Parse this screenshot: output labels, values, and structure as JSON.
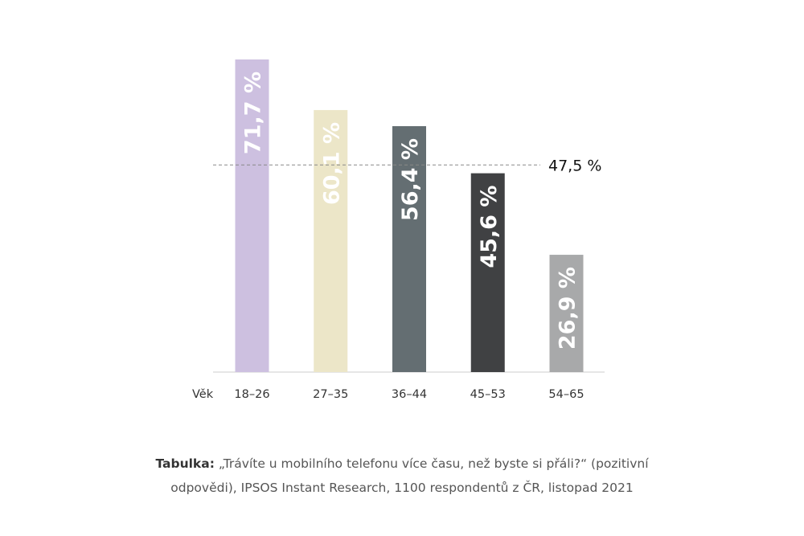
{
  "chart_data": {
    "type": "bar",
    "xlabel": "Věk",
    "categories": [
      "18–26",
      "27–35",
      "36–44",
      "45–53",
      "54–65"
    ],
    "values": [
      71.7,
      60.1,
      56.4,
      45.6,
      26.9
    ],
    "value_labels": [
      "71,7 %",
      "60,1 %",
      "56,4 %",
      "45,6 %",
      "26,9 %"
    ],
    "bar_colors": [
      "#cdc0e0",
      "#ece6c8",
      "#646e72",
      "#404143",
      "#a8a9aa"
    ],
    "reference_line": {
      "value": 47.5,
      "label": "47,5 %",
      "style": "dashed",
      "color": "#888888"
    },
    "ylim": [
      0,
      71.7
    ],
    "grid": false
  },
  "caption": {
    "bold": "Tabulka:",
    "text": " „Trávíte u mobilního telefonu více času, než byste si přáli?“ (pozitivní odpovědi), IPSOS Instant Research, 1100 respondentů z ČR, listopad 2021"
  }
}
